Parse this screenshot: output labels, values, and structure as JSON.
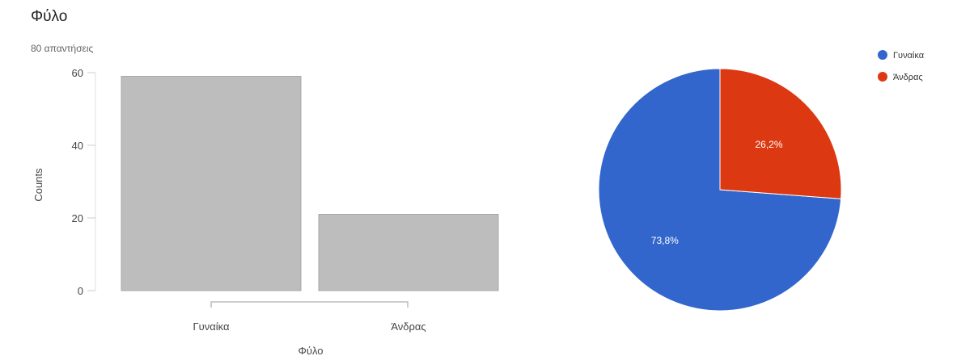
{
  "header": {
    "title": "Φύλο",
    "subtitle": "80 απαντήσεις"
  },
  "chart_data": [
    {
      "type": "bar",
      "categories": [
        "Γυναίκα",
        "Άνδρας"
      ],
      "values": [
        59,
        21
      ],
      "xlabel": "Φύλο",
      "ylabel": "Counts",
      "ylim": [
        0,
        60
      ],
      "yticks": [
        0,
        20,
        40,
        60
      ],
      "bar_color": "#bdbdbd",
      "grid": false
    },
    {
      "type": "pie",
      "categories": [
        "Γυναίκα",
        "Άνδρας"
      ],
      "values": [
        73.8,
        26.2
      ],
      "labels": [
        "73,8%",
        "26,2%"
      ],
      "colors": [
        "#3366cc",
        "#dc3912"
      ],
      "legend": [
        "Γυναίκα",
        "Άνδρας"
      ],
      "legend_position": "top-right"
    }
  ]
}
